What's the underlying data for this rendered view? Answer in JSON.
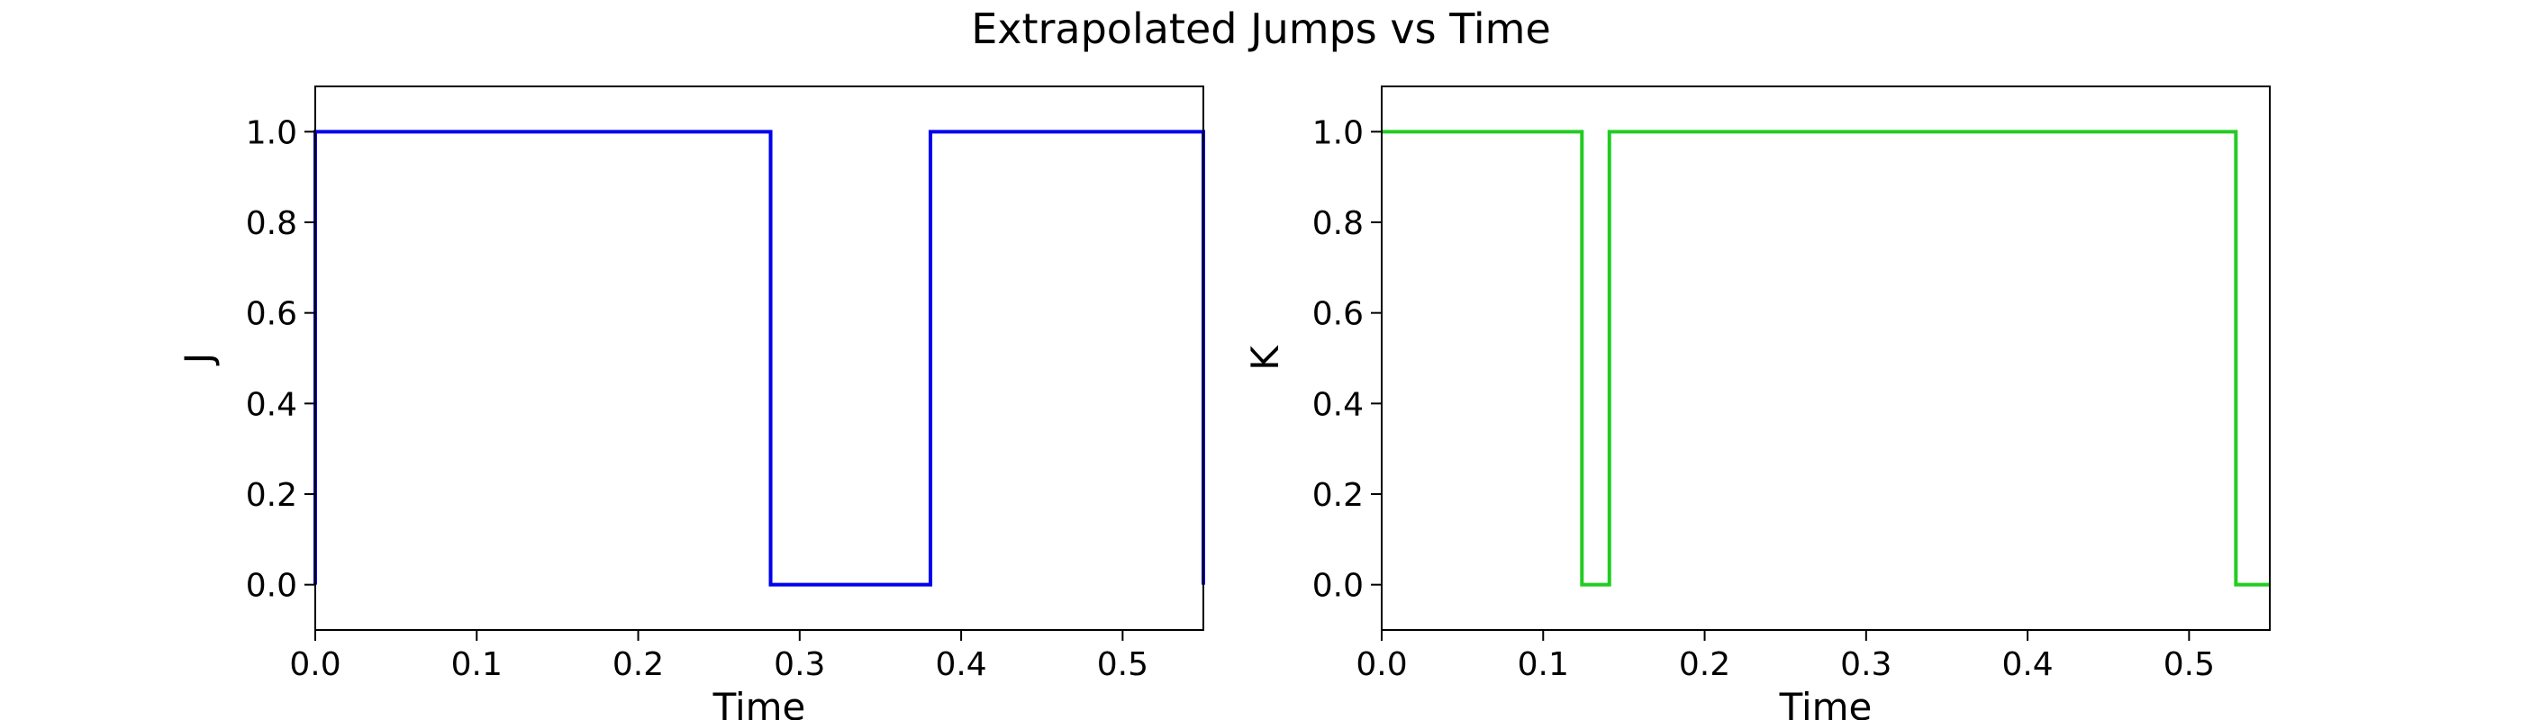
{
  "figure": {
    "title": "Extrapolated Jumps vs Time"
  },
  "chart_data": [
    {
      "type": "line",
      "drawstyle": "step",
      "xlabel": "Time",
      "ylabel": "J",
      "xlim": [
        0.0,
        0.55
      ],
      "ylim": [
        -0.1,
        1.1
      ],
      "xticks": [
        0.0,
        0.1,
        0.2,
        0.3,
        0.4,
        0.5
      ],
      "xtick_labels": [
        "0.0",
        "0.1",
        "0.2",
        "0.3",
        "0.4",
        "0.5"
      ],
      "yticks": [
        0.0,
        0.2,
        0.4,
        0.6,
        0.8,
        1.0
      ],
      "ytick_labels": [
        "0.0",
        "0.2",
        "0.4",
        "0.6",
        "0.8",
        "1.0"
      ],
      "grid": false,
      "color": "#0000ee",
      "series": [
        {
          "x": [
            0.0,
            0.0,
            0.282,
            0.282,
            0.381,
            0.381,
            0.55,
            0.55
          ],
          "values": [
            0,
            1,
            1,
            0,
            0,
            1,
            1,
            0
          ]
        }
      ]
    },
    {
      "type": "line",
      "drawstyle": "step",
      "xlabel": "Time",
      "ylabel": "K",
      "xlim": [
        0.0,
        0.55
      ],
      "ylim": [
        -0.1,
        1.1
      ],
      "xticks": [
        0.0,
        0.1,
        0.2,
        0.3,
        0.4,
        0.5
      ],
      "xtick_labels": [
        "0.0",
        "0.1",
        "0.2",
        "0.3",
        "0.4",
        "0.5"
      ],
      "yticks": [
        0.0,
        0.2,
        0.4,
        0.6,
        0.8,
        1.0
      ],
      "ytick_labels": [
        "0.0",
        "0.2",
        "0.4",
        "0.6",
        "0.8",
        "1.0"
      ],
      "grid": false,
      "color": "#22cc22",
      "series": [
        {
          "x": [
            0.0,
            0.124,
            0.124,
            0.141,
            0.141,
            0.529,
            0.529,
            0.55
          ],
          "values": [
            1,
            1,
            0,
            0,
            1,
            1,
            0,
            0
          ]
        }
      ]
    }
  ]
}
